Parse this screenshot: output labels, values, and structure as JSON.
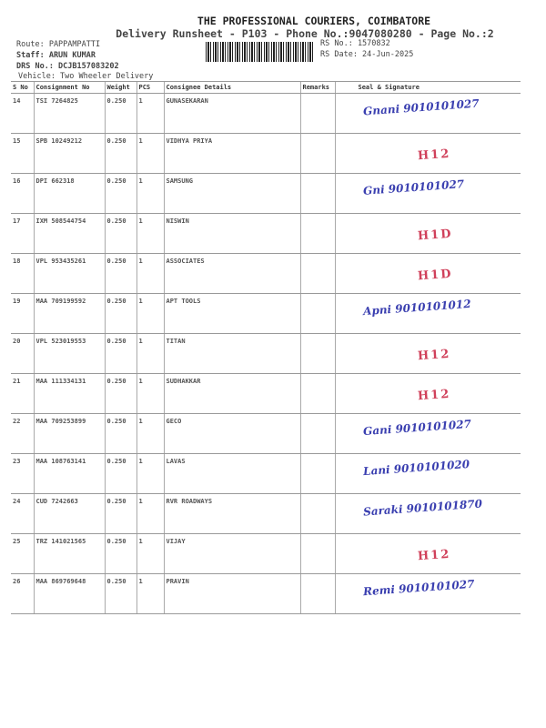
{
  "header": {
    "company": "THE PROFESSIONAL COURIERS, COIMBATORE",
    "subtitle": "Delivery Runsheet - P103 - Phone No.:9047080280 - Page No.:2",
    "route": "Route: PAPPAMPATTI",
    "staff": "Staff: ARUN KUMAR",
    "drs": "DRS No.: DCJB157083202",
    "vehicle": "Vehicle: Two Wheeler Delivery",
    "rs_no": "RS No.: 1570832",
    "rs_date": "RS Date: 24-Jun-2025"
  },
  "table": {
    "columns": [
      "S No",
      "Consignment No",
      "Weight",
      "PCS",
      "Consignee Details",
      "Remarks",
      "Seal & Signature"
    ],
    "rows": [
      {
        "sno": "14",
        "cn": "TSI 7264825",
        "weight": "0.250",
        "pcs": "1",
        "consignee": "GUNASEKARAN",
        "remarks": "",
        "signature": "Gnani 9010101027"
      },
      {
        "sno": "15",
        "cn": "SPB 10249212",
        "weight": "0.250",
        "pcs": "1",
        "consignee": "VIDHYA PRIYA",
        "remarks": "",
        "signature": "H12"
      },
      {
        "sno": "16",
        "cn": "DPI 662318",
        "weight": "0.250",
        "pcs": "1",
        "consignee": "SAMSUNG",
        "remarks": "",
        "signature": "Gni 9010101027"
      },
      {
        "sno": "17",
        "cn": "IXM 508544754",
        "weight": "0.250",
        "pcs": "1",
        "consignee": "NISWIN",
        "remarks": "",
        "signature": "H1D"
      },
      {
        "sno": "18",
        "cn": "VPL 953435261",
        "weight": "0.250",
        "pcs": "1",
        "consignee": "ASSOCIATES",
        "remarks": "",
        "signature": "H1D"
      },
      {
        "sno": "19",
        "cn": "MAA 709199592",
        "weight": "0.250",
        "pcs": "1",
        "consignee": "APT TOOLS",
        "remarks": "",
        "signature": "Apni 9010101012"
      },
      {
        "sno": "20",
        "cn": "VPL 523019553",
        "weight": "0.250",
        "pcs": "1",
        "consignee": "TITAN",
        "remarks": "",
        "signature": "H12"
      },
      {
        "sno": "21",
        "cn": "MAA 111334131",
        "weight": "0.250",
        "pcs": "1",
        "consignee": "SUDHAKKAR",
        "remarks": "",
        "signature": "H12"
      },
      {
        "sno": "22",
        "cn": "MAA 709253899",
        "weight": "0.250",
        "pcs": "1",
        "consignee": "GECO",
        "remarks": "",
        "signature": "Gani 9010101027"
      },
      {
        "sno": "23",
        "cn": "MAA 108763141",
        "weight": "0.250",
        "pcs": "1",
        "consignee": "LAVAS",
        "remarks": "",
        "signature": "Lani 9010101020"
      },
      {
        "sno": "24",
        "cn": "CUD 7242663",
        "weight": "0.250",
        "pcs": "1",
        "consignee": "RVR ROADWAYS",
        "remarks": "",
        "signature": "Saraki 9010101870"
      },
      {
        "sno": "25",
        "cn": "TRZ 141021565",
        "weight": "0.250",
        "pcs": "1",
        "consignee": "VIJAY",
        "remarks": "",
        "signature": "H12"
      },
      {
        "sno": "26",
        "cn": "MAA 869769648",
        "weight": "0.250",
        "pcs": "1",
        "consignee": "PRAVIN",
        "remarks": "",
        "signature": "Remi 9010101027"
      }
    ]
  },
  "colors": {
    "signature_ink": "#3a3fb0",
    "hold_ink": "#d0405a"
  }
}
